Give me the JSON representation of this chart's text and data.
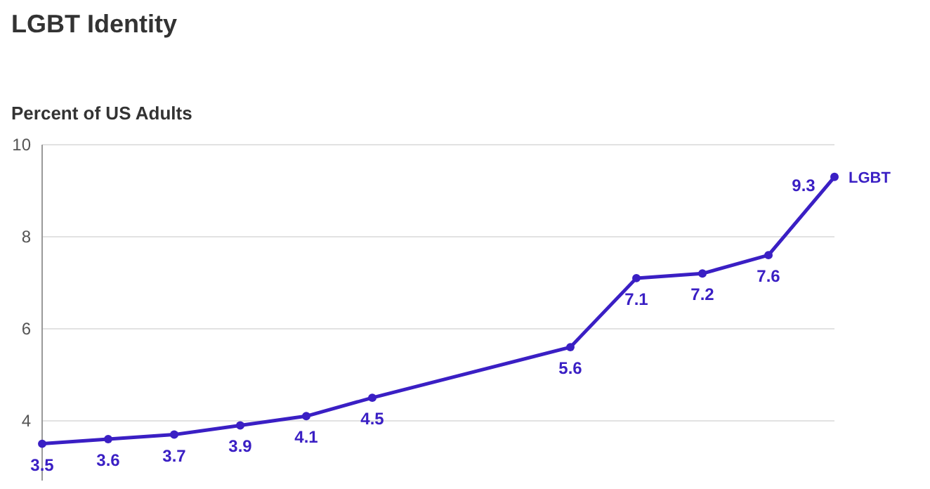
{
  "chart_data": {
    "type": "line",
    "title": "LGBT Identity",
    "ylabel": "Percent of US Adults",
    "categories": [
      null,
      null,
      null,
      null,
      null,
      null,
      null,
      null,
      null,
      null,
      null,
      null,
      null
    ],
    "series": [
      {
        "name": "LGBT",
        "color": "#3a1fc4",
        "values": [
          3.5,
          3.6,
          3.7,
          3.9,
          4.1,
          4.5,
          null,
          null,
          5.6,
          7.1,
          7.2,
          7.6,
          9.3
        ]
      }
    ],
    "ylim": [
      2.7,
      10
    ],
    "yticks": [
      4,
      6,
      8,
      10
    ],
    "grid": "y",
    "marker": "circle",
    "line_style": "solid",
    "data_labels": true,
    "tick_labels": "y",
    "legend": false
  }
}
